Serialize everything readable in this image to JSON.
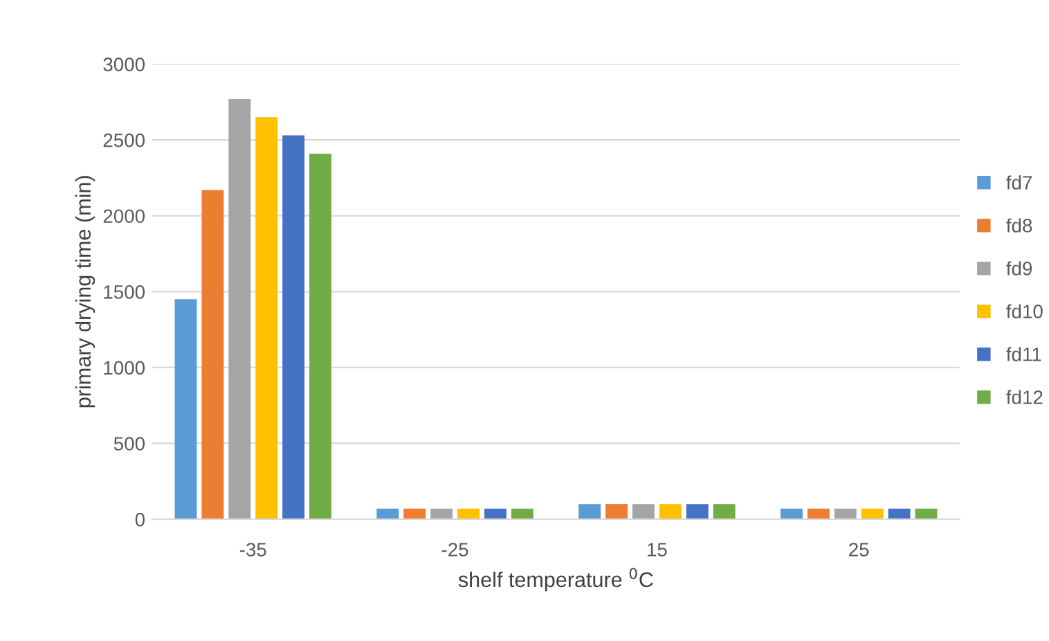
{
  "chart_data": {
    "type": "bar",
    "xlabel": "shelf temperature $^{0}$C",
    "ylabel": "primary drying time (min)",
    "categories": [
      "-35",
      "-25",
      "15",
      "25"
    ],
    "series": [
      {
        "name": "fd7",
        "color": "#5b9bd5",
        "values": [
          1450,
          70,
          100,
          70
        ]
      },
      {
        "name": "fd8",
        "color": "#ed7d31",
        "values": [
          2170,
          70,
          100,
          70
        ]
      },
      {
        "name": "fd9",
        "color": "#a5a5a5",
        "values": [
          2770,
          70,
          100,
          70
        ]
      },
      {
        "name": "fd10",
        "color": "#ffc000",
        "values": [
          2650,
          70,
          100,
          70
        ]
      },
      {
        "name": "fd11",
        "color": "#4472c4",
        "values": [
          2530,
          70,
          100,
          70
        ]
      },
      {
        "name": "fd12",
        "color": "#70ad47",
        "values": [
          2410,
          70,
          100,
          70
        ]
      }
    ],
    "ylim": [
      0,
      3000
    ],
    "yticks": [
      0,
      500,
      1000,
      1500,
      2000,
      2500,
      3000
    ],
    "grid": "y",
    "legend": "right"
  }
}
